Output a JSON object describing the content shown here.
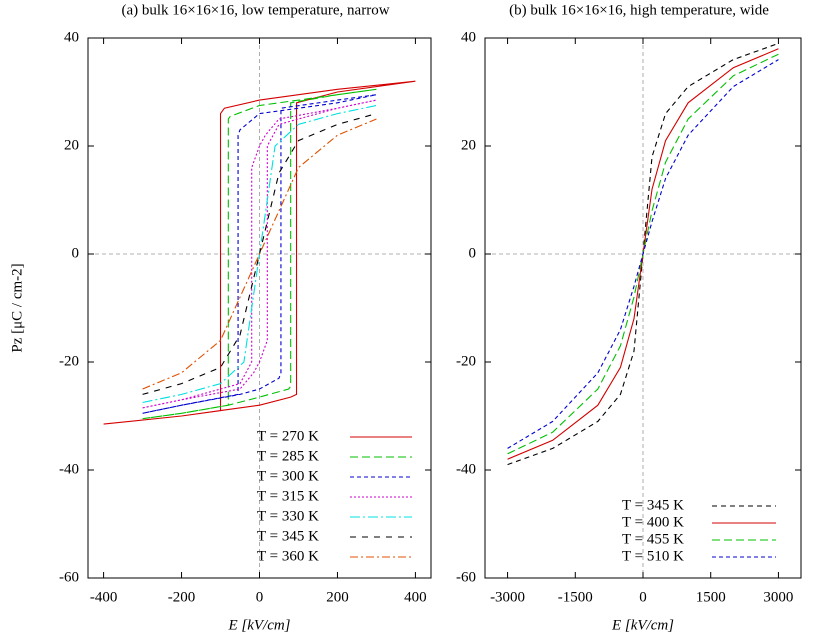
{
  "chart_data": [
    {
      "type": "line",
      "title": "(a) bulk 16×16×16, low temperature, narrow",
      "xlabel": "E [kV/cm]",
      "ylabel": "Pz [μC / cm-2]",
      "xlim": [
        -440,
        440
      ],
      "ylim": [
        -60,
        40
      ],
      "xticks": [
        -400,
        -200,
        0,
        200,
        400
      ],
      "yticks": [
        -60,
        -40,
        -20,
        0,
        20,
        40
      ],
      "legend": "lower right",
      "series": [
        {
          "name": "T = 270 K",
          "color": "#d40000",
          "dash": "none",
          "x": [
            -400,
            -200,
            -100,
            0,
            80,
            95,
            95,
            200,
            400,
            200,
            0,
            -90,
            -100,
            -100,
            -200,
            -400
          ],
          "values": [
            -31.5,
            -30,
            -29,
            -28,
            -26.5,
            -26,
            28,
            30,
            32,
            30.5,
            28.5,
            27,
            26,
            -29,
            -30,
            -31.5
          ]
        },
        {
          "name": "T = 285 K",
          "color": "#00c000",
          "dash": "8,4",
          "x": [
            -300,
            -200,
            -80,
            0,
            75,
            80,
            80,
            200,
            300,
            200,
            0,
            -75,
            -80,
            -80,
            -200,
            -300
          ],
          "values": [
            -30.5,
            -29.5,
            -28,
            -26.5,
            -25,
            -24.5,
            28,
            29.5,
            30.5,
            29.5,
            27.5,
            25.5,
            25,
            -28,
            -29.5,
            -30.5
          ]
        },
        {
          "name": "T = 300 K",
          "color": "#0000d0",
          "dash": "4,3",
          "x": [
            -300,
            -200,
            -50,
            0,
            50,
            55,
            55,
            200,
            300,
            200,
            0,
            -50,
            -55,
            -55,
            -200,
            -300
          ],
          "values": [
            -29.5,
            -28,
            -26,
            -25,
            -23,
            -22,
            27,
            28.5,
            29.5,
            28,
            26,
            23,
            22,
            -26,
            -28,
            -29.5
          ]
        },
        {
          "name": "T = 315 K",
          "color": "#d000d0",
          "dash": "2,2",
          "x": [
            -300,
            -200,
            -50,
            -15,
            0,
            20,
            20,
            50,
            200,
            300,
            200,
            50,
            15,
            0,
            -20,
            -20,
            -50,
            -200,
            -300
          ],
          "values": [
            -28.5,
            -27,
            -25,
            -22,
            -20,
            -16,
            20,
            24,
            27,
            28.5,
            27,
            25,
            22,
            20,
            16,
            -20,
            -24,
            -27,
            -28.5
          ]
        },
        {
          "name": "T = 330 K",
          "color": "#00e0e0",
          "dash": "10,3,2,3",
          "x": [
            -300,
            -200,
            -100,
            -40,
            -20,
            0,
            20,
            40,
            100,
            200,
            300
          ],
          "values": [
            -27.5,
            -26,
            -24,
            -20,
            -10,
            0,
            10,
            20,
            24,
            26,
            27.5
          ]
        },
        {
          "name": "T = 345 K",
          "color": "#000000",
          "dash": "6,6",
          "x": [
            -300,
            -200,
            -100,
            -50,
            0,
            50,
            100,
            200,
            300
          ],
          "values": [
            -26,
            -24,
            -21,
            -15,
            0,
            15,
            21,
            24,
            26
          ]
        },
        {
          "name": "T = 360 K",
          "color": "#e05000",
          "dash": "8,3,2,3",
          "x": [
            -300,
            -200,
            -100,
            0,
            100,
            200,
            300
          ],
          "values": [
            -25,
            -22,
            -16,
            0,
            16,
            22,
            25
          ]
        }
      ]
    },
    {
      "type": "line",
      "title": "(b) bulk 16×16×16, high temperature, wide",
      "xlabel": "E [kV/cm]",
      "xlim": [
        -3500,
        3500
      ],
      "ylim": [
        -60,
        40
      ],
      "xticks": [
        -3000,
        -1500,
        0,
        1500,
        3000
      ],
      "yticks": [
        -60,
        -40,
        -20,
        0,
        20,
        40
      ],
      "legend": "lower right",
      "series": [
        {
          "name": "T = 345 K",
          "color": "#000000",
          "dash": "5,4",
          "x": [
            -3000,
            -2000,
            -1000,
            -500,
            -200,
            0,
            200,
            500,
            1000,
            2000,
            3000
          ],
          "values": [
            -39,
            -36,
            -31,
            -26,
            -18,
            0,
            18,
            26,
            31,
            36,
            39
          ]
        },
        {
          "name": "T = 400 K",
          "color": "#d40000",
          "dash": "none",
          "x": [
            -3000,
            -2000,
            -1000,
            -500,
            -200,
            0,
            200,
            500,
            1000,
            2000,
            3000
          ],
          "values": [
            -38,
            -34.5,
            -28,
            -21,
            -12,
            0,
            12,
            21,
            28,
            34.5,
            38
          ]
        },
        {
          "name": "T = 455 K",
          "color": "#00c000",
          "dash": "8,4",
          "x": [
            -3000,
            -2000,
            -1000,
            -500,
            -200,
            0,
            200,
            500,
            1000,
            2000,
            3000
          ],
          "values": [
            -37,
            -33,
            -25,
            -17,
            -8,
            0,
            8,
            17,
            25,
            33,
            37
          ]
        },
        {
          "name": "T = 510 K",
          "color": "#0000d0",
          "dash": "4,3",
          "x": [
            -3000,
            -2000,
            -1000,
            -500,
            -200,
            0,
            200,
            500,
            1000,
            2000,
            3000
          ],
          "values": [
            -36,
            -31,
            -22,
            -14,
            -6,
            0,
            6,
            14,
            22,
            31,
            36
          ]
        }
      ]
    }
  ]
}
